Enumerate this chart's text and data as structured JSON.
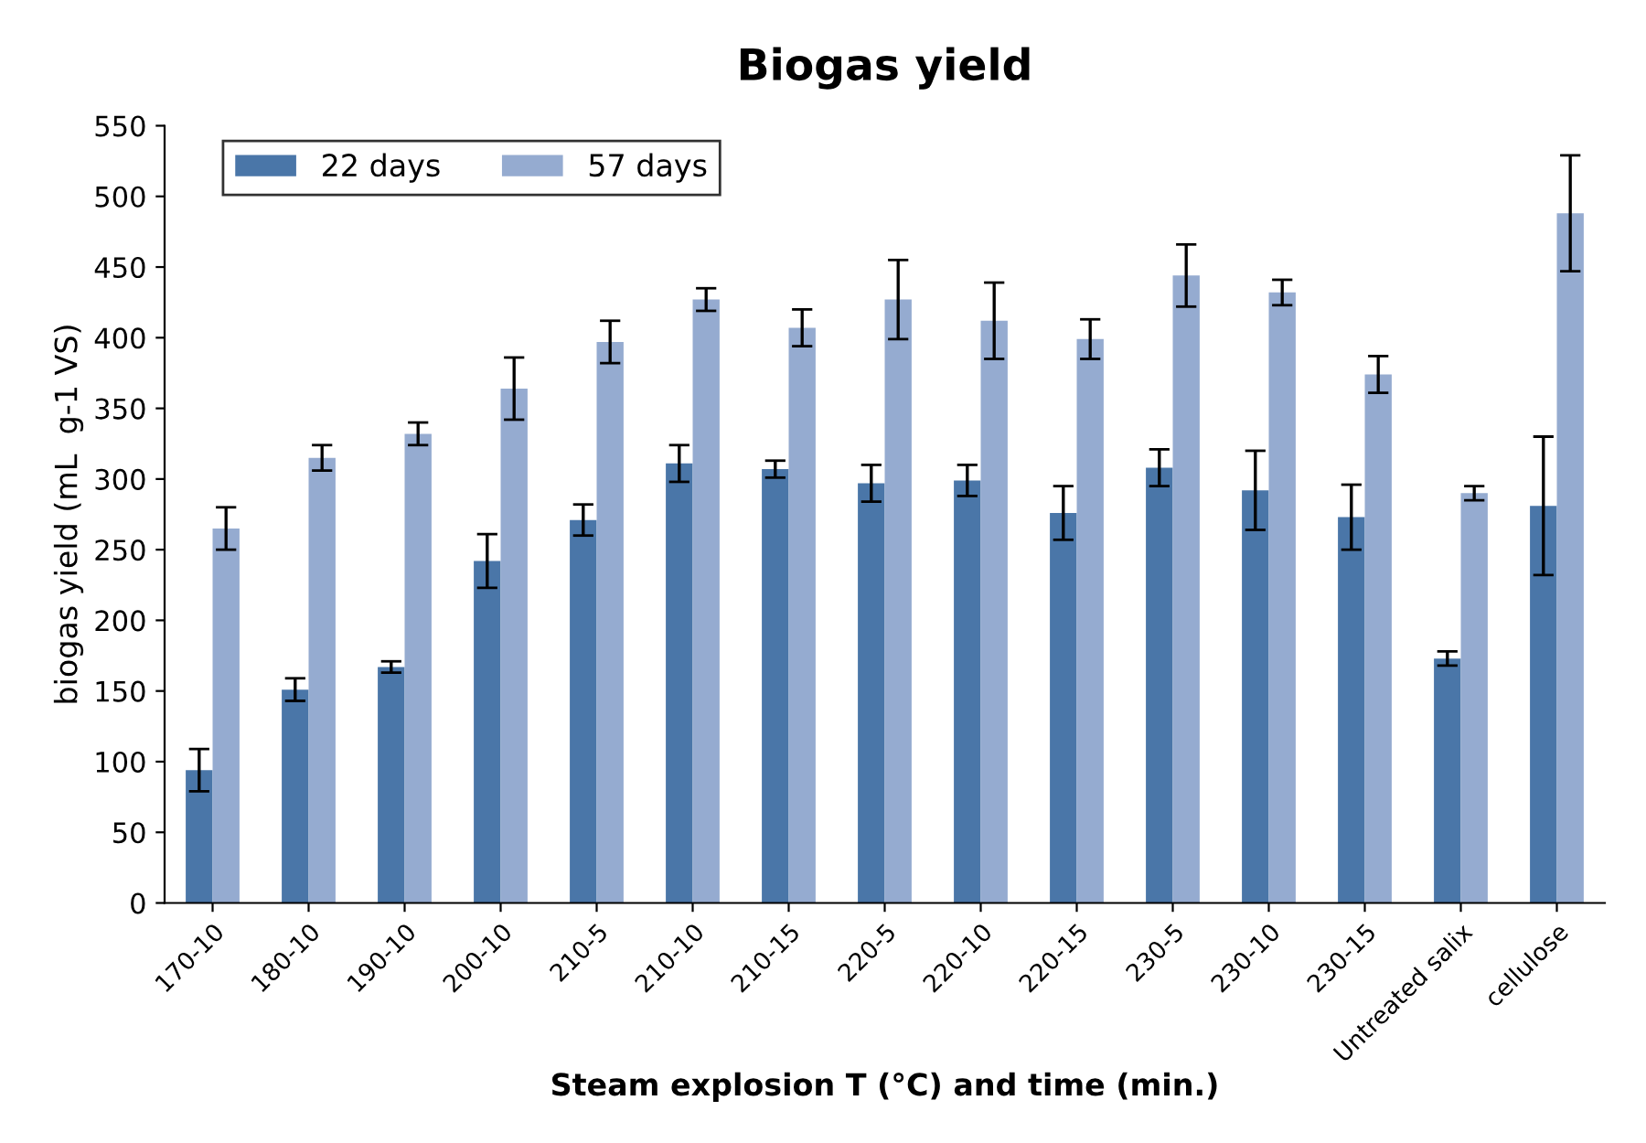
{
  "chart_data": {
    "type": "bar",
    "title": "Biogas yield",
    "xlabel": "Steam explosion T (°C) and time (min.)",
    "ylabel": "biogas yield (mL  g-1 VS)",
    "categories": [
      "170-10",
      "180-10",
      "190-10",
      "200-10",
      "210-5",
      "210-10",
      "210-15",
      "220-5",
      "220-10",
      "220-15",
      "230-5",
      "230-10",
      "230-15",
      "Untreated salix",
      "cellulose"
    ],
    "series": [
      {
        "name": "22 days",
        "color": "#4a76a8",
        "values": [
          94,
          151,
          167,
          242,
          271,
          311,
          307,
          297,
          299,
          276,
          308,
          292,
          273,
          173,
          281
        ],
        "errors": [
          15,
          8,
          4,
          19,
          11,
          13,
          6,
          13,
          11,
          19,
          13,
          28,
          23,
          5,
          49
        ]
      },
      {
        "name": "57 days",
        "color": "#95abd0",
        "values": [
          265,
          315,
          332,
          364,
          397,
          427,
          407,
          427,
          412,
          399,
          444,
          432,
          374,
          290,
          488
        ],
        "errors": [
          15,
          9,
          8,
          22,
          15,
          8,
          13,
          28,
          27,
          14,
          22,
          9,
          13,
          5,
          41
        ]
      }
    ],
    "ylim": [
      0,
      550
    ],
    "yticks": [
      0,
      50,
      100,
      150,
      200,
      250,
      300,
      350,
      400,
      450,
      500,
      550
    ],
    "grid": false,
    "legend": "top left"
  }
}
